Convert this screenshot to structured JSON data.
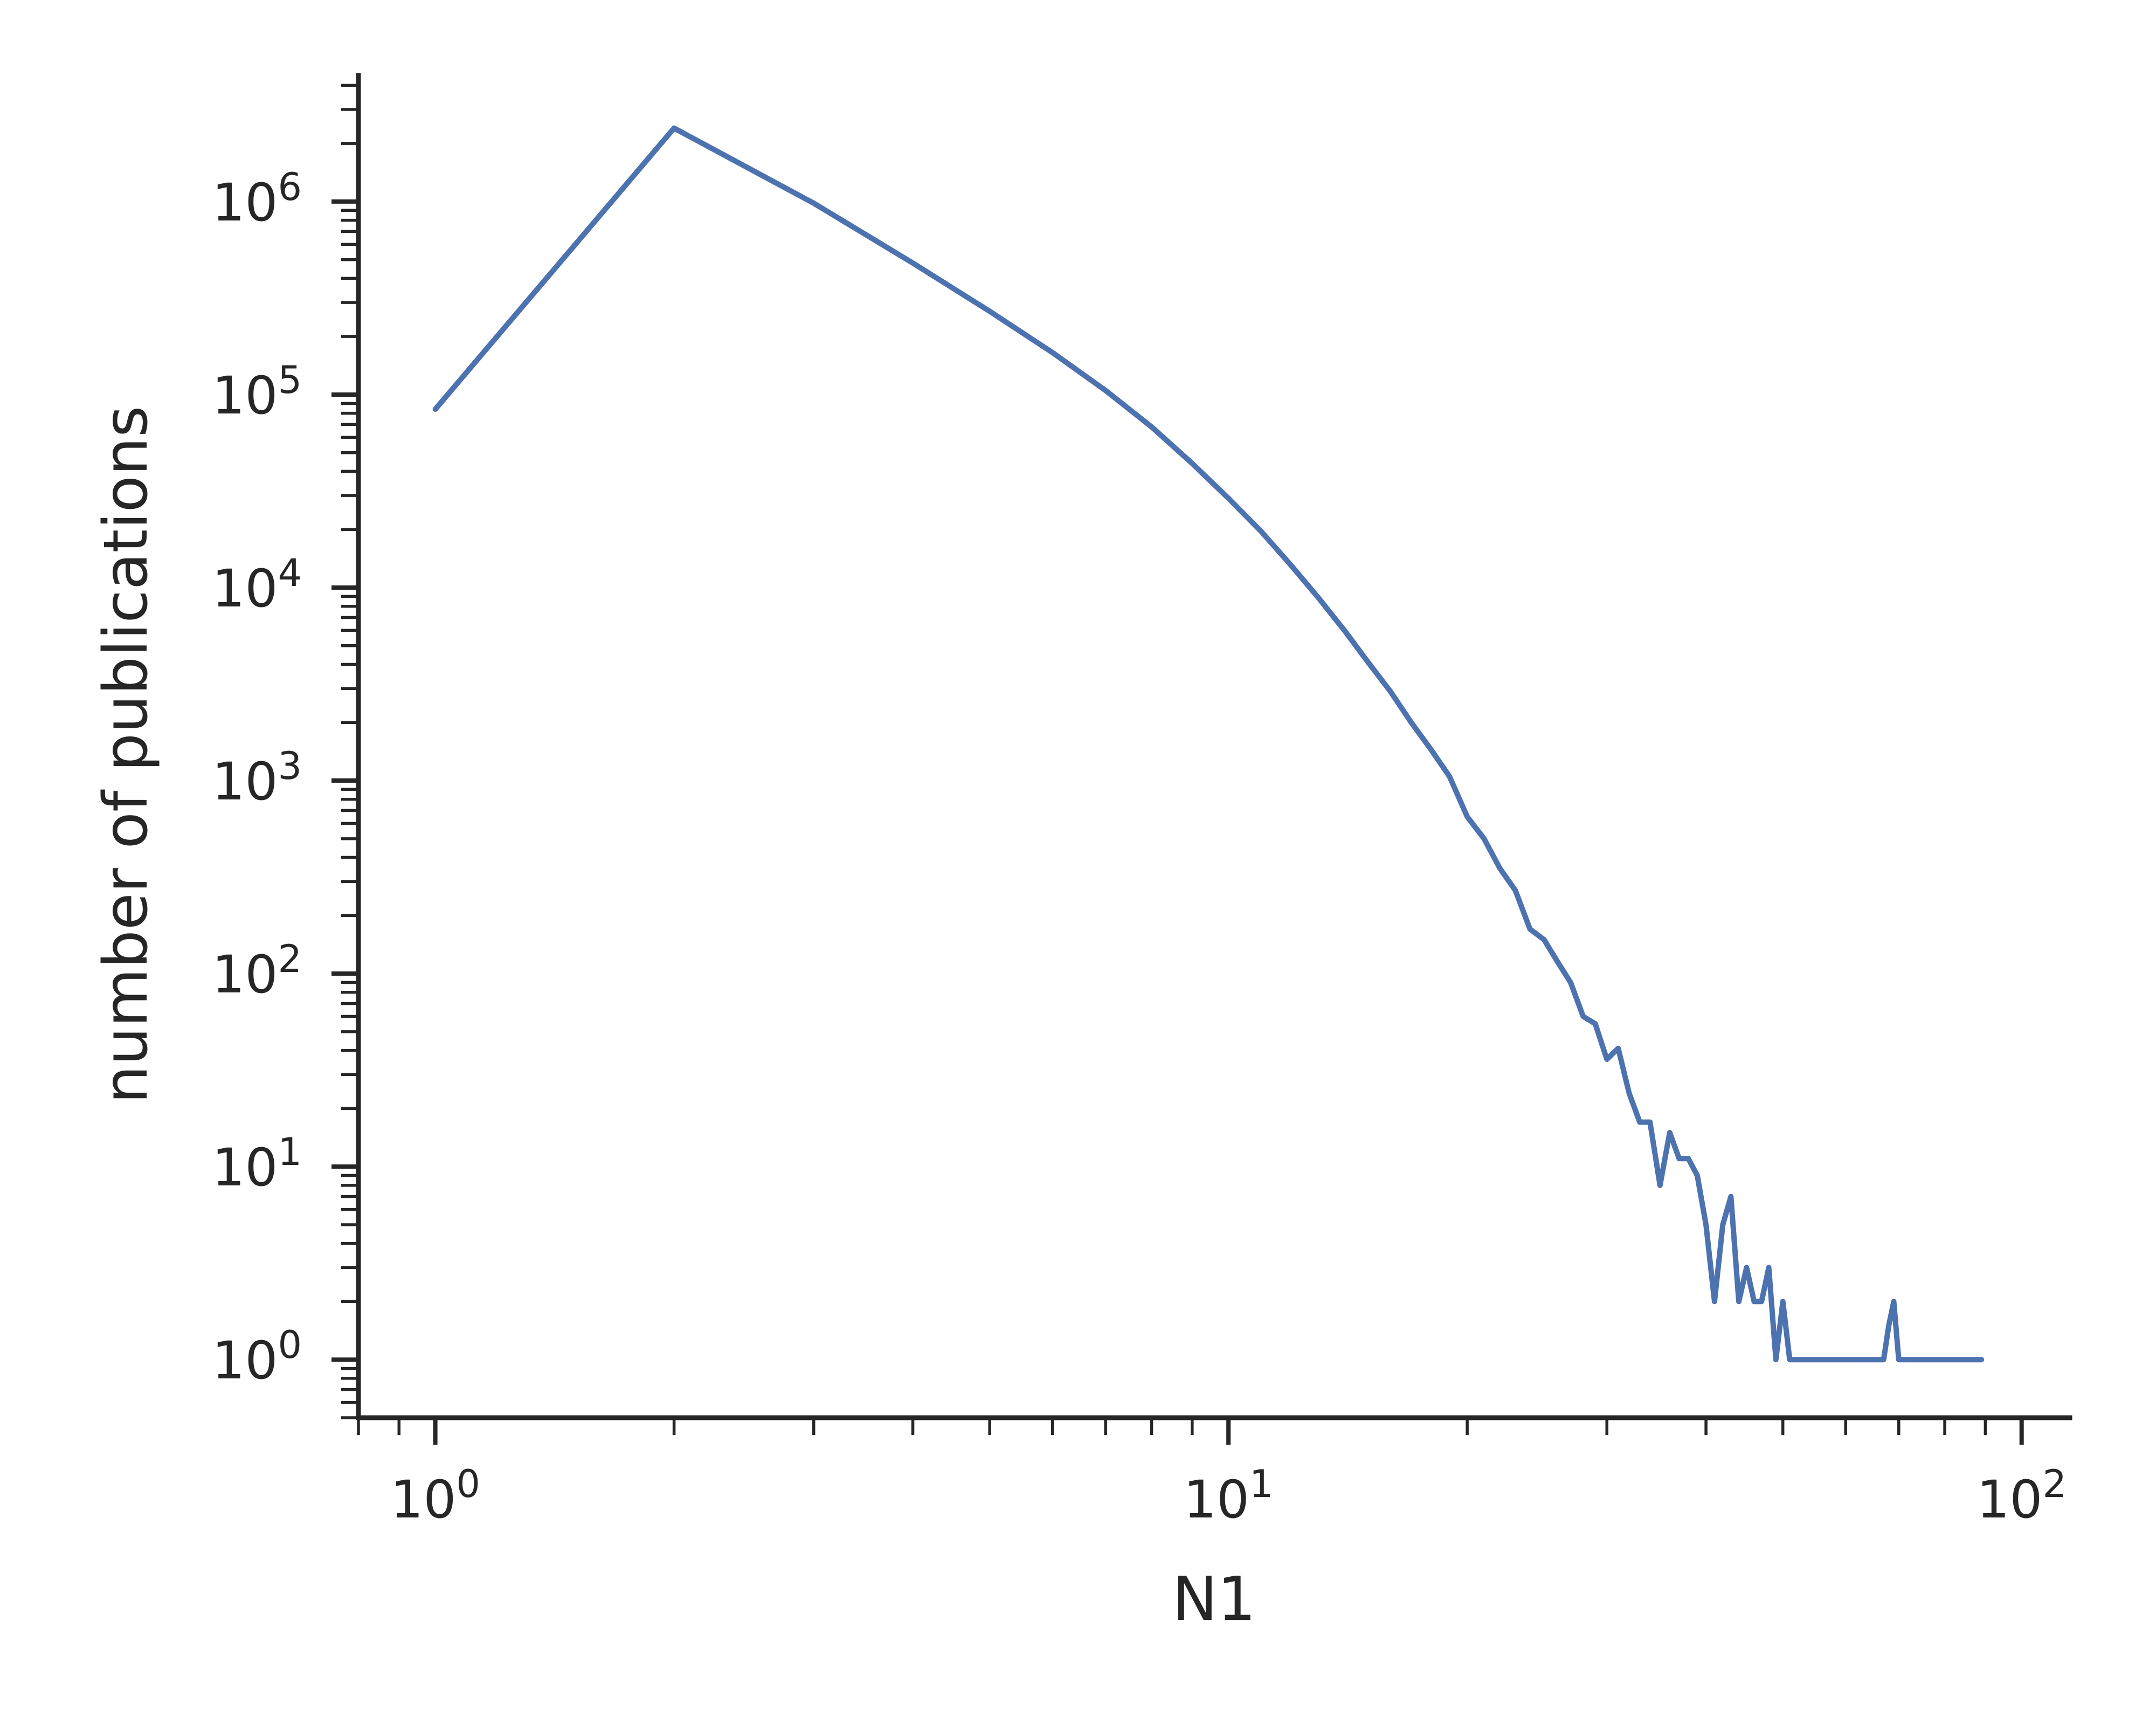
{
  "chart_data": {
    "type": "line",
    "xlabel": "N1",
    "ylabel": "number of publications",
    "xscale": "log",
    "yscale": "log",
    "xlim": [
      0.8,
      115
    ],
    "ylim": [
      0.5,
      4500000
    ],
    "x_ticks": [
      {
        "base": "10",
        "exp": "0",
        "value": 1
      },
      {
        "base": "10",
        "exp": "1",
        "value": 10
      },
      {
        "base": "10",
        "exp": "2",
        "value": 100
      }
    ],
    "y_ticks": [
      {
        "base": "10",
        "exp": "0",
        "value": 1
      },
      {
        "base": "10",
        "exp": "1",
        "value": 10
      },
      {
        "base": "10",
        "exp": "2",
        "value": 100
      },
      {
        "base": "10",
        "exp": "3",
        "value": 1000
      },
      {
        "base": "10",
        "exp": "4",
        "value": 10000
      },
      {
        "base": "10",
        "exp": "5",
        "value": 100000
      },
      {
        "base": "10",
        "exp": "6",
        "value": 1000000
      }
    ],
    "grid": false,
    "series": [
      {
        "color": "#4c72b0",
        "x": [
          1,
          2,
          3,
          4,
          5,
          6,
          7,
          8,
          9,
          10,
          11,
          12,
          13,
          14,
          15,
          16,
          17,
          18,
          19,
          20,
          21,
          22,
          23,
          24,
          25,
          26,
          27,
          28,
          29,
          30,
          31,
          32,
          33,
          34,
          35,
          36,
          37,
          38,
          39,
          40,
          41,
          42,
          43,
          44,
          45,
          46,
          47,
          48,
          49,
          50,
          51,
          52,
          53,
          54,
          55,
          56,
          57,
          58,
          59,
          60,
          61,
          62,
          63,
          64,
          65,
          66,
          67,
          68,
          69,
          70,
          71,
          72,
          73,
          74,
          75,
          76,
          77,
          78,
          79,
          80,
          81,
          82,
          83,
          84,
          85,
          86,
          87,
          88,
          89
        ],
        "y": [
          84000,
          2400000,
          980000,
          480000,
          270000,
          165000,
          105000,
          68000,
          44000,
          29000,
          19500,
          13000,
          8800,
          6000,
          4100,
          2900,
          2000,
          1450,
          1050,
          650,
          500,
          350,
          270,
          170,
          150,
          115,
          90,
          60,
          55,
          36,
          41,
          24,
          17,
          17,
          8,
          15,
          11,
          11,
          9,
          5,
          2,
          5,
          7,
          2,
          3,
          2,
          2,
          3,
          1,
          2,
          1,
          1,
          1,
          1,
          1,
          1,
          1,
          1,
          1,
          1,
          1,
          1,
          1,
          1,
          1,
          1,
          1,
          1.5,
          2,
          1,
          1,
          1,
          1,
          1,
          1,
          1,
          1,
          1,
          1,
          1,
          1,
          1,
          1,
          1,
          1,
          1,
          1,
          1,
          1
        ]
      }
    ]
  }
}
